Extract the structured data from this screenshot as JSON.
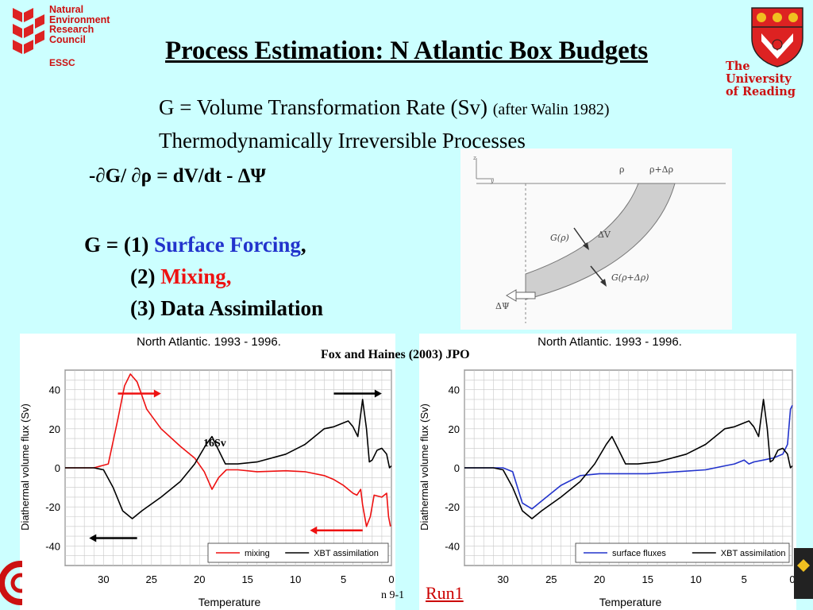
{
  "slide": {
    "title": "Process Estimation: N Atlantic Box Budgets",
    "nerc_lines": [
      "Natural",
      "Environment",
      "Research",
      "Council"
    ],
    "essc": "ESSC",
    "university_lines": [
      "The",
      "University",
      "of Reading"
    ],
    "line1_main": "G = Volume Transformation Rate (Sv) ",
    "line1_note": "(after Walin 1982)",
    "line2": "Thermodynamically Irreversible Processes",
    "equation": "-∂G/ ∂ρ = dV/dt - ΔΨ",
    "g_prefix": "G = (1) ",
    "g_item1": "Surface Forcing",
    "g_item1_comma": ",",
    "g_item2_num": "(2) ",
    "g_item2": "Mixing,",
    "g_item3": "(3) Data Assimilation",
    "reference": "Fox and Haines (2003) JPO",
    "run_link": "Run1",
    "truncated_text": "n 9-1",
    "annotation_16sv": "16Sv"
  },
  "diagram": {
    "labels": {
      "rho": "ρ",
      "rho_plus": "ρ+Δρ",
      "g_rho": "G(ρ)",
      "dV": "ΔV",
      "g_rho_plus": "G(ρ+Δρ)",
      "dPsi": "ΔΨ",
      "axis_z": "z",
      "axis_y": "y"
    }
  },
  "colors": {
    "red": "#ee1111",
    "blue": "#2233cc",
    "black": "#000000",
    "background": "#ccffff"
  },
  "chart_data": [
    {
      "type": "line",
      "title": "North Atlantic.  1993 - 1996.",
      "xlabel": "Temperature",
      "ylabel": "Diathermal volume flux (Sv)",
      "xlim": [
        34,
        0
      ],
      "ylim": [
        -50,
        50
      ],
      "xticks": [
        "30",
        "25",
        "20",
        "15",
        "10",
        "5",
        "0"
      ],
      "yticks": [
        "40",
        "20",
        "0",
        "-20",
        "-40"
      ],
      "grid": true,
      "legend_position": "bottom-right",
      "series": [
        {
          "name": "mixing",
          "color": "#ee1111",
          "points": [
            [
              34,
              0
            ],
            [
              31,
              0
            ],
            [
              29.5,
              2
            ],
            [
              28.5,
              25
            ],
            [
              27.8,
              42
            ],
            [
              27.2,
              48
            ],
            [
              26.5,
              44
            ],
            [
              25.5,
              30
            ],
            [
              24,
              20
            ],
            [
              22,
              11
            ],
            [
              20.5,
              5
            ],
            [
              19.5,
              -2
            ],
            [
              18.7,
              -11
            ],
            [
              18,
              -5
            ],
            [
              17.2,
              -1
            ],
            [
              16,
              -1
            ],
            [
              14,
              -2
            ],
            [
              11,
              -1.5
            ],
            [
              9,
              -2
            ],
            [
              7,
              -4
            ],
            [
              6,
              -6
            ],
            [
              5,
              -9
            ],
            [
              4,
              -13
            ],
            [
              3.6,
              -14
            ],
            [
              3.2,
              -11
            ],
            [
              3,
              -19
            ],
            [
              2.6,
              -30
            ],
            [
              2.2,
              -25
            ],
            [
              1.8,
              -14
            ],
            [
              1,
              -15
            ],
            [
              0.5,
              -13
            ],
            [
              0.3,
              -25
            ],
            [
              0.1,
              -30
            ]
          ]
        },
        {
          "name": "XBT assimilation",
          "color": "#000000",
          "points": [
            [
              34,
              0
            ],
            [
              31,
              0
            ],
            [
              30,
              -1
            ],
            [
              29,
              -10
            ],
            [
              28,
              -22
            ],
            [
              27,
              -26
            ],
            [
              26,
              -22
            ],
            [
              24,
              -15
            ],
            [
              22,
              -7
            ],
            [
              20.5,
              2
            ],
            [
              19.3,
              12
            ],
            [
              18.7,
              16
            ],
            [
              18,
              9
            ],
            [
              17.3,
              2
            ],
            [
              16,
              2
            ],
            [
              14,
              3
            ],
            [
              11,
              7
            ],
            [
              9,
              12
            ],
            [
              7,
              20
            ],
            [
              6,
              21
            ],
            [
              5,
              23
            ],
            [
              4.5,
              24
            ],
            [
              4,
              21
            ],
            [
              3.5,
              16
            ],
            [
              3,
              35
            ],
            [
              2.6,
              20
            ],
            [
              2.3,
              3
            ],
            [
              2,
              4
            ],
            [
              1.5,
              9
            ],
            [
              1,
              10
            ],
            [
              0.5,
              7
            ],
            [
              0.2,
              0
            ],
            [
              0,
              1
            ]
          ]
        }
      ],
      "arrows": [
        {
          "direction": "right",
          "color": "#ee1111",
          "y": 38,
          "x_from": 28.5,
          "x_to": 24.5
        },
        {
          "direction": "right",
          "color": "#000000",
          "y": 38,
          "x_from": 6,
          "x_to": 1.5
        },
        {
          "direction": "left",
          "color": "#000000",
          "y": -36,
          "x_from": 26.5,
          "x_to": 31
        },
        {
          "direction": "left",
          "color": "#ee1111",
          "y": -32,
          "x_from": 3,
          "x_to": 8
        }
      ]
    },
    {
      "type": "line",
      "title": "North Atlantic.  1993 - 1996.",
      "xlabel": "Temperature",
      "ylabel": "Diathermal volume flux (Sv)",
      "xlim": [
        34,
        0
      ],
      "ylim": [
        -50,
        50
      ],
      "xticks": [
        "30",
        "25",
        "20",
        "15",
        "10",
        "5",
        "0"
      ],
      "yticks": [
        "40",
        "20",
        "0",
        "-20",
        "-40"
      ],
      "grid": true,
      "legend_position": "bottom-right",
      "series": [
        {
          "name": "surface fluxes",
          "color": "#2233cc",
          "points": [
            [
              34,
              0
            ],
            [
              30,
              0
            ],
            [
              29,
              -2
            ],
            [
              28,
              -18
            ],
            [
              27,
              -21
            ],
            [
              26,
              -17
            ],
            [
              24,
              -9
            ],
            [
              22,
              -4
            ],
            [
              20,
              -3
            ],
            [
              18,
              -3
            ],
            [
              15,
              -3
            ],
            [
              12,
              -2
            ],
            [
              9,
              -1
            ],
            [
              7,
              1
            ],
            [
              6,
              2
            ],
            [
              5,
              4
            ],
            [
              4.5,
              2
            ],
            [
              4,
              3
            ],
            [
              3,
              4
            ],
            [
              2,
              5
            ],
            [
              1,
              7
            ],
            [
              0.5,
              12
            ],
            [
              0.2,
              30
            ],
            [
              0,
              32
            ]
          ]
        },
        {
          "name": "XBT assimilation",
          "color": "#000000",
          "points": [
            [
              34,
              0
            ],
            [
              31,
              0
            ],
            [
              30,
              -1
            ],
            [
              29,
              -10
            ],
            [
              28,
              -22
            ],
            [
              27,
              -26
            ],
            [
              26,
              -22
            ],
            [
              24,
              -15
            ],
            [
              22,
              -7
            ],
            [
              20.5,
              2
            ],
            [
              19.3,
              12
            ],
            [
              18.7,
              16
            ],
            [
              18,
              9
            ],
            [
              17.3,
              2
            ],
            [
              16,
              2
            ],
            [
              14,
              3
            ],
            [
              11,
              7
            ],
            [
              9,
              12
            ],
            [
              7,
              20
            ],
            [
              6,
              21
            ],
            [
              5,
              23
            ],
            [
              4.5,
              24
            ],
            [
              4,
              21
            ],
            [
              3.5,
              16
            ],
            [
              3,
              35
            ],
            [
              2.6,
              20
            ],
            [
              2.3,
              3
            ],
            [
              2,
              4
            ],
            [
              1.5,
              9
            ],
            [
              1,
              10
            ],
            [
              0.5,
              7
            ],
            [
              0.2,
              0
            ],
            [
              0,
              1
            ]
          ]
        }
      ]
    }
  ]
}
